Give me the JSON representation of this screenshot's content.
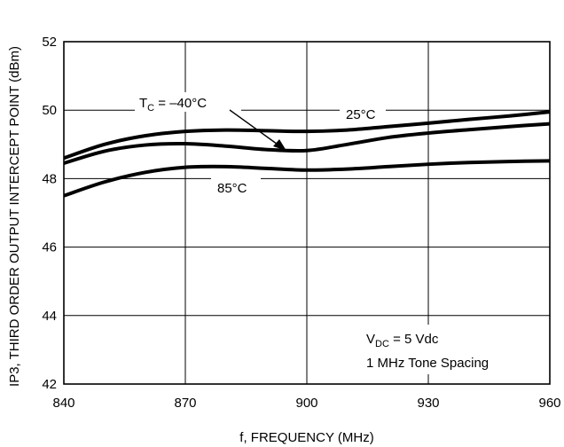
{
  "chart_data": {
    "type": "line",
    "title": "",
    "xlabel": "f, FREQUENCY (MHz)",
    "ylabel": "IP3, THIRD ORDER OUTPUT INTERCEPT POINT (dBm)",
    "xlim": [
      840,
      960
    ],
    "ylim": [
      42,
      52
    ],
    "x_ticks": [
      840,
      870,
      900,
      930,
      960
    ],
    "x_tick_labels": [
      "840",
      "870",
      "900",
      "930",
      "960"
    ],
    "y_ticks": [
      42,
      44,
      46,
      48,
      50,
      52
    ],
    "y_tick_labels": [
      "42",
      "44",
      "46",
      "48",
      "50",
      "52"
    ],
    "grid": true,
    "series": [
      {
        "key": "25C",
        "x": [
          840,
          850,
          860,
          870,
          880,
          890,
          900,
          910,
          920,
          930,
          940,
          950,
          960
        ],
        "values": [
          48.6,
          49.0,
          49.25,
          49.38,
          49.42,
          49.4,
          49.38,
          49.42,
          49.52,
          49.62,
          49.73,
          49.83,
          49.95
        ]
      },
      {
        "key": "-40C",
        "x": [
          840,
          850,
          860,
          870,
          880,
          890,
          900,
          910,
          920,
          930,
          940,
          950,
          960
        ],
        "values": [
          48.45,
          48.8,
          48.98,
          49.02,
          48.95,
          48.85,
          48.82,
          49.0,
          49.2,
          49.33,
          49.43,
          49.52,
          49.6
        ]
      },
      {
        "key": "85C",
        "x": [
          840,
          850,
          860,
          870,
          880,
          890,
          900,
          910,
          920,
          930,
          940,
          950,
          960
        ],
        "values": [
          47.5,
          47.9,
          48.18,
          48.33,
          48.35,
          48.3,
          48.25,
          48.28,
          48.35,
          48.42,
          48.47,
          48.5,
          48.52
        ]
      }
    ],
    "annotations": {
      "tc_label": {
        "T": "T",
        "sub": "C",
        "rest": " = –40°C"
      },
      "label_25": "25°C",
      "label_85": "85°C",
      "vdc": {
        "V": "V",
        "sub": "DC",
        "rest": " = 5 Vdc"
      },
      "spacing": "1 MHz Tone Spacing"
    }
  }
}
